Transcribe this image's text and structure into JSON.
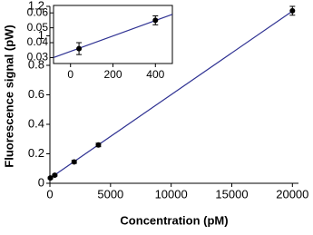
{
  "chart_data": [
    {
      "type": "scatter",
      "x_label": "Concentration (pM)",
      "y_label": "Fluorescence signal (pW)",
      "x": [
        40,
        400,
        2000,
        4000,
        20000
      ],
      "values": [
        0.036,
        0.055,
        0.145,
        0.26,
        1.17
      ],
      "errors": [
        0.006,
        0.006,
        0.01,
        0.012,
        0.03
      ],
      "color": "#000000",
      "trendline": {
        "x": [
          0,
          20000
        ],
        "values": [
          0.034,
          1.168
        ],
        "color": "#2e3192"
      },
      "xlim": [
        0,
        20500
      ],
      "ylim": [
        0,
        1.2
      ],
      "xticks": [
        0,
        5000,
        10000,
        15000,
        20000
      ],
      "yticks": [
        0,
        0.2,
        0.4,
        0.6,
        0.8,
        1,
        1.2
      ]
    },
    {
      "type": "scatter",
      "x": [
        40,
        400
      ],
      "values": [
        0.036,
        0.055
      ],
      "errors": [
        0.004,
        0.003
      ],
      "color": "#000000",
      "trendline": {
        "x": [
          -80,
          480
        ],
        "values": [
          0.03,
          0.059
        ],
        "color": "#2e3192"
      },
      "xlim": [
        -80,
        480
      ],
      "ylim": [
        0.026,
        0.065
      ],
      "xticks": [
        0,
        200,
        400
      ],
      "yticks": [
        0.03,
        0.04,
        0.05,
        0.06
      ]
    }
  ]
}
